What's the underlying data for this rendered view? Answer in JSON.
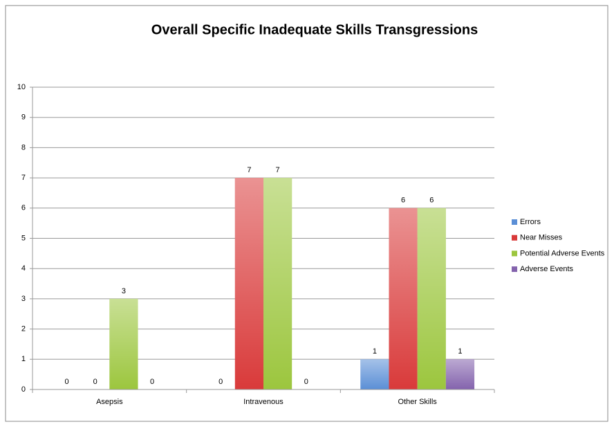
{
  "chart_data": {
    "type": "bar",
    "title": "Overall Specific Inadequate Skills Transgressions",
    "categories": [
      "Asepsis",
      "Intravenous",
      "Other Skills"
    ],
    "series": [
      {
        "name": "Errors",
        "color": "#5b8fd6",
        "values": [
          0,
          0,
          1
        ]
      },
      {
        "name": "Near Misses",
        "color": "#d93a3a",
        "values": [
          0,
          7,
          6
        ]
      },
      {
        "name": "Potential Adverse Events",
        "color": "#9cc63e",
        "values": [
          3,
          7,
          6
        ]
      },
      {
        "name": "Adverse Events",
        "color": "#8463ad",
        "values": [
          0,
          0,
          1
        ]
      }
    ],
    "ylim": [
      0,
      10
    ],
    "yticks": [
      0,
      1,
      2,
      3,
      4,
      5,
      6,
      7,
      8,
      9,
      10
    ],
    "grid": true,
    "legend": "right"
  }
}
